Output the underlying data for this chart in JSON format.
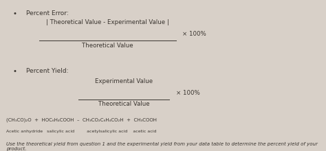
{
  "bg_color": "#d8d0c8",
  "text_color": "#3a3530",
  "bullet1": "Percent Error:",
  "formula1_numerator": "| Theoretical Value - Experimental Value |",
  "formula1_denominator": "Theoretical Value",
  "formula1_multiplier": "× 100%",
  "bullet2": "Percent Yield:",
  "formula2_numerator": "Experimental Value",
  "formula2_denominator": "Theoretical Value",
  "formula2_multiplier": "× 100%",
  "reaction": "(CH₃CO)₂O  +  HOC₆H₄COOH  –  CH₃CO₂C₆H₄CO₂H  +  CH₃COOH",
  "labels": "Acetic anhydride   salicylic acid         acetylsalicylic acid    acetic acid",
  "footer": "Use the theoretical yield from question 1 and the experimental yield from your data table to determine the percent yield of your product.",
  "fs_bullet": 6.5,
  "fs_formula": 6.2,
  "fs_reaction": 5.0,
  "fs_labels": 4.5,
  "fs_footer": 5.0
}
